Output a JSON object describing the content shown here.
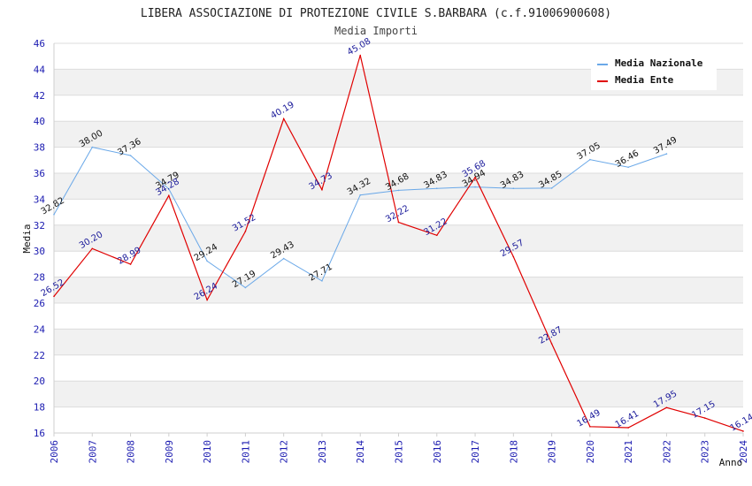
{
  "chart_data": {
    "type": "line",
    "title": "LIBERA ASSOCIAZIONE DI PROTEZIONE CIVILE S.BARBARA (c.f.91006900608)",
    "subtitle": "Media Importi",
    "xlabel": "Anno",
    "ylabel": "Media",
    "ylim": [
      16,
      46
    ],
    "ytick_step": 2,
    "yticks": [
      "16",
      "18",
      "20",
      "22",
      "24",
      "26",
      "28",
      "30",
      "32",
      "34",
      "36",
      "38",
      "40",
      "42",
      "44",
      "46"
    ],
    "categories": [
      "2006",
      "2007",
      "2008",
      "2009",
      "2010",
      "2011",
      "2012",
      "2013",
      "2014",
      "2015",
      "2016",
      "2017",
      "2018",
      "2019",
      "2020",
      "2021",
      "2022",
      "2023",
      "2024"
    ],
    "series": [
      {
        "name": "Media Nazionale",
        "color": "#6aa8e8",
        "values": [
          32.82,
          38.0,
          37.36,
          34.79,
          29.24,
          27.19,
          29.43,
          27.71,
          34.32,
          34.68,
          34.83,
          34.94,
          34.83,
          34.85,
          37.05,
          36.46,
          37.49,
          null,
          null
        ],
        "labels": [
          "32.82",
          "38.00",
          "37.36",
          "34.79",
          "29.24",
          "27.19",
          "29.43",
          "27.71",
          "34.32",
          "34.68",
          "34.83",
          "34.94",
          "34.83",
          "34.85",
          "37.05",
          "36.46",
          "37.49",
          "",
          ""
        ]
      },
      {
        "name": "Media Ente",
        "color": "#e00000",
        "values": [
          26.52,
          30.2,
          28.99,
          34.28,
          26.24,
          31.52,
          40.19,
          34.73,
          45.08,
          32.22,
          31.22,
          35.68,
          29.57,
          22.87,
          16.49,
          16.41,
          17.95,
          17.15,
          16.14
        ],
        "labels": [
          "26.52",
          "30.20",
          "28.99",
          "34.28",
          "26.24",
          "31.52",
          "40.19",
          "34.73",
          "45.08",
          "32.22",
          "31.22",
          "35.68",
          "29.57",
          "22.87",
          "16.49",
          "16.41",
          "17.95",
          "17.15",
          "16.14"
        ]
      }
    ],
    "legend_position": "top-right",
    "grid": true
  }
}
